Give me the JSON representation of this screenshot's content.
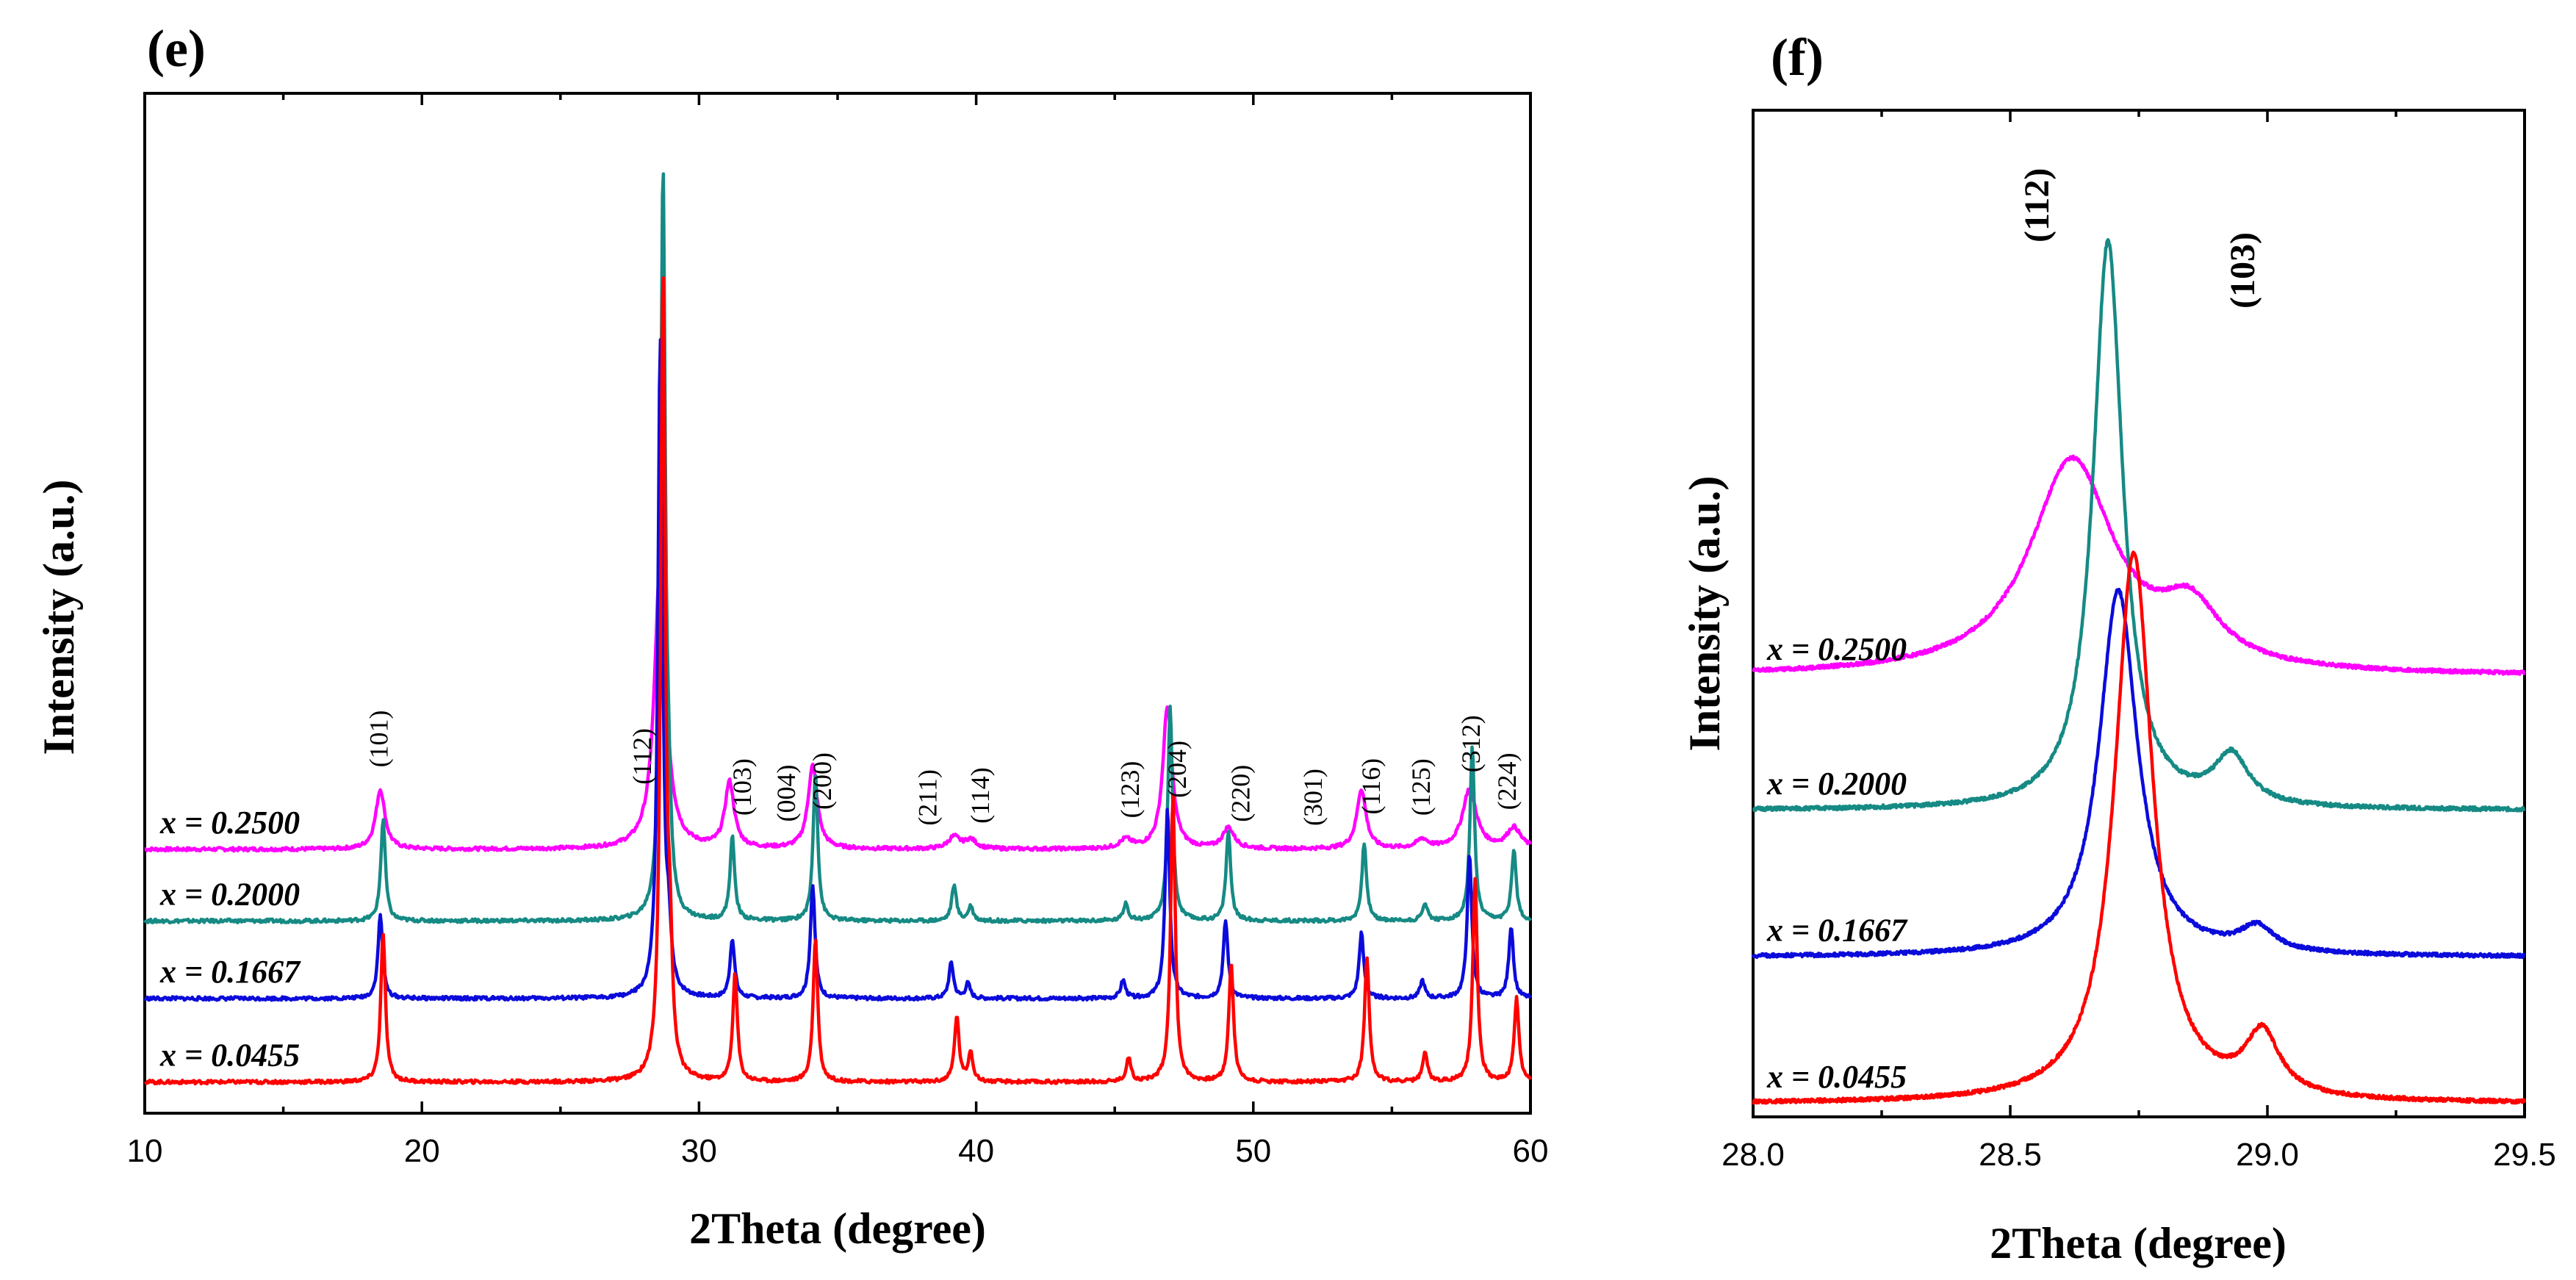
{
  "chart_data": [
    {
      "type": "line",
      "panel_label": "(e)",
      "xlabel": "2Theta  (degree)",
      "ylabel": "Intensity  (a.u.)",
      "xlim": [
        10,
        60
      ],
      "xticks": [
        "10",
        "20",
        "30",
        "40",
        "50",
        "60"
      ],
      "series": [
        {
          "name": "x = 0.2500",
          "color": "#ff00ff",
          "baseline": 4.2,
          "peaks": [
            [
              18.5,
              1.0,
              0.2
            ],
            [
              28.6,
              4.8,
              0.25
            ],
            [
              31.1,
              1.1,
              0.2
            ],
            [
              34.1,
              1.4,
              0.2
            ],
            [
              39.2,
              0.2,
              0.25
            ],
            [
              39.8,
              0.15,
              0.25
            ],
            [
              45.4,
              0.15,
              0.25
            ],
            [
              46.9,
              2.4,
              0.2
            ],
            [
              49.1,
              0.35,
              0.25
            ],
            [
              53.9,
              1.0,
              0.2
            ],
            [
              56.1,
              0.15,
              0.25
            ],
            [
              57.8,
              1.0,
              0.3
            ],
            [
              59.4,
              0.35,
              0.3
            ]
          ]
        },
        {
          "name": "x = 0.2000",
          "color": "#168a84",
          "baseline": 3.0,
          "peaks": [
            [
              18.6,
              1.7,
              0.1
            ],
            [
              28.7,
              12.5,
              0.1
            ],
            [
              28.9,
              1.2,
              0.1
            ],
            [
              31.2,
              1.4,
              0.1
            ],
            [
              34.2,
              2.5,
              0.1
            ],
            [
              39.2,
              0.6,
              0.1
            ],
            [
              39.8,
              0.25,
              0.1
            ],
            [
              45.4,
              0.3,
              0.1
            ],
            [
              47.0,
              3.6,
              0.1
            ],
            [
              49.1,
              1.5,
              0.1
            ],
            [
              54.0,
              1.3,
              0.1
            ],
            [
              56.2,
              0.3,
              0.1
            ],
            [
              57.9,
              2.9,
              0.1
            ],
            [
              59.4,
              1.2,
              0.1
            ]
          ]
        },
        {
          "name": "x = 0.1667",
          "color": "#0b0bdb",
          "baseline": 1.7,
          "peaks": [
            [
              18.5,
              1.4,
              0.1
            ],
            [
              28.6,
              11.0,
              0.1
            ],
            [
              28.9,
              0.9,
              0.1
            ],
            [
              31.2,
              1.0,
              0.1
            ],
            [
              34.1,
              1.9,
              0.1
            ],
            [
              39.1,
              0.6,
              0.1
            ],
            [
              39.7,
              0.25,
              0.1
            ],
            [
              45.3,
              0.3,
              0.1
            ],
            [
              46.9,
              3.2,
              0.1
            ],
            [
              49.0,
              1.3,
              0.1
            ],
            [
              53.9,
              1.1,
              0.1
            ],
            [
              56.1,
              0.3,
              0.1
            ],
            [
              57.8,
              2.4,
              0.1
            ],
            [
              59.3,
              1.2,
              0.1
            ]
          ]
        },
        {
          "name": "x = 0.0455",
          "color": "#ff0000",
          "baseline": 0.3,
          "peaks": [
            [
              18.6,
              2.5,
              0.1
            ],
            [
              28.7,
              13.5,
              0.1
            ],
            [
              28.95,
              1.7,
              0.1
            ],
            [
              31.3,
              1.8,
              0.1
            ],
            [
              34.2,
              2.4,
              0.1
            ],
            [
              39.3,
              1.1,
              0.1
            ],
            [
              39.8,
              0.5,
              0.1
            ],
            [
              45.5,
              0.4,
              0.1
            ],
            [
              47.1,
              4.8,
              0.1
            ],
            [
              49.2,
              2.0,
              0.1
            ],
            [
              54.1,
              2.1,
              0.1
            ],
            [
              56.2,
              0.5,
              0.1
            ],
            [
              58.0,
              3.4,
              0.1
            ],
            [
              59.5,
              1.4,
              0.1
            ]
          ]
        }
      ],
      "annotations": [
        {
          "text": "(101)",
          "x": 18.5
        },
        {
          "text": "(112)",
          "x": 28.0
        },
        {
          "text": "(103)",
          "x": 31.6
        },
        {
          "text": "(004)",
          "x": 33.2
        },
        {
          "text": "(200)",
          "x": 34.5
        },
        {
          "text": "(211)",
          "x": 38.3
        },
        {
          "text": "(114)",
          "x": 40.2
        },
        {
          "text": "(123)",
          "x": 45.6
        },
        {
          "text": "(204)",
          "x": 47.3
        },
        {
          "text": "(220)",
          "x": 49.6
        },
        {
          "text": "(301)",
          "x": 52.2
        },
        {
          "text": "(116)",
          "x": 54.3
        },
        {
          "text": "(125)",
          "x": 56.1
        },
        {
          "text": "(312)",
          "x": 57.9
        },
        {
          "text": "(224)",
          "x": 59.2
        }
      ]
    },
    {
      "type": "line",
      "panel_label": "(f)",
      "xlabel": "2Theta  (degree)",
      "ylabel": "Intensity  (a.u.)",
      "xlim": [
        28.0,
        29.5
      ],
      "xticks": [
        "28.0",
        "28.5",
        "29.0",
        "29.5"
      ],
      "series": [
        {
          "name": "x = 0.2500",
          "color": "#ff00ff",
          "baseline": 7.0,
          "peaks": [
            [
              28.62,
              3.5,
              0.1
            ],
            [
              28.85,
              0.9,
              0.07
            ]
          ]
        },
        {
          "name": "x = 0.2000",
          "color": "#168a84",
          "baseline": 4.8,
          "peaks": [
            [
              28.69,
              9.3,
              0.035
            ],
            [
              28.93,
              0.8,
              0.04
            ]
          ]
        },
        {
          "name": "x = 0.1667",
          "color": "#0b0bdb",
          "baseline": 2.4,
          "peaks": [
            [
              28.71,
              6.0,
              0.045
            ],
            [
              28.98,
              0.4,
              0.04
            ]
          ]
        },
        {
          "name": "x = 0.0455",
          "color": "#ff0000",
          "baseline": 0.0,
          "peaks": [
            [
              28.74,
              9.0,
              0.045
            ],
            [
              28.99,
              1.0,
              0.04
            ]
          ]
        }
      ],
      "annotations": [
        {
          "text": "(112)",
          "x": 28.56
        },
        {
          "text": "(103)",
          "x": 28.96
        }
      ]
    }
  ]
}
